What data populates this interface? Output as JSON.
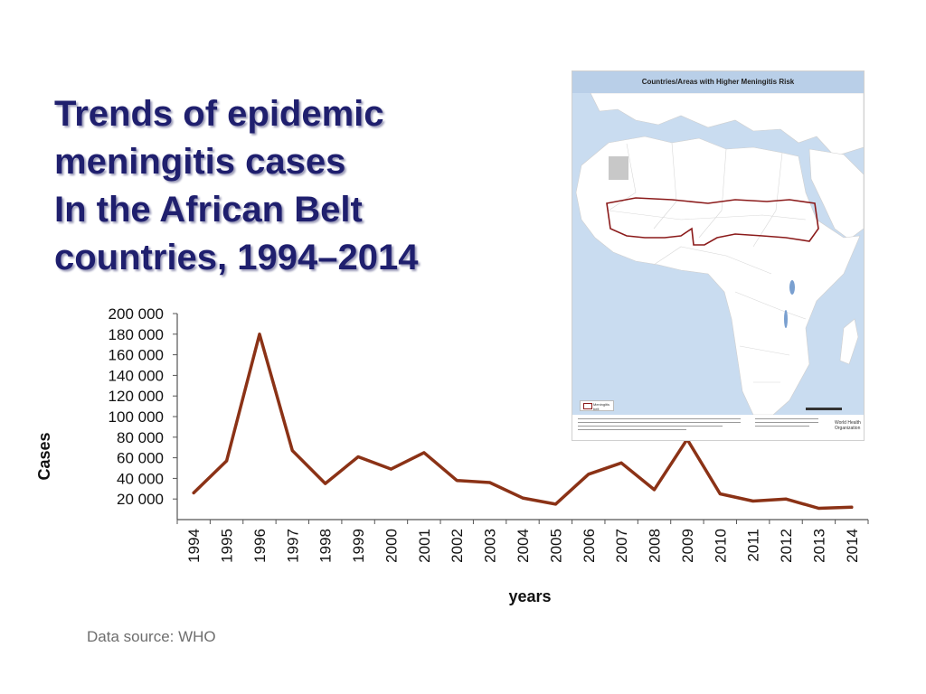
{
  "slide": {
    "title_lines": [
      "Trends of epidemic",
      "meningitis cases",
      "In the African Belt",
      "countries, 1994–2014"
    ],
    "source_note": "Data source: WHO"
  },
  "map": {
    "header": "Countries/Areas with Higher Meningitis Risk",
    "legend_label": "Meningitis belt",
    "logo_text": "World Health Organization",
    "colors": {
      "header_bg": "#b9cfe8",
      "water": "#c9dcf0",
      "land": "#ffffff",
      "belt_outline": "#8b1a1a"
    }
  },
  "chart_data": {
    "type": "line",
    "title": "",
    "xlabel": "years",
    "ylabel": "Cases",
    "x": [
      "1994",
      "1995",
      "1996",
      "1997",
      "1998",
      "1999",
      "2000",
      "2001",
      "2002",
      "2003",
      "2004",
      "2005",
      "2006",
      "2007",
      "2008",
      "2009",
      "2010",
      "2011",
      "2012",
      "2013",
      "2014"
    ],
    "series": [
      {
        "values": [
          26000,
          57000,
          180000,
          67000,
          35000,
          61000,
          49000,
          65000,
          38000,
          36000,
          21000,
          15000,
          44000,
          55000,
          29000,
          78000,
          25000,
          18000,
          20000,
          11000,
          12000
        ],
        "color": "#8b3216"
      }
    ],
    "ylim": [
      0,
      200000
    ],
    "yticks": [
      20000,
      40000,
      60000,
      80000,
      100000,
      120000,
      140000,
      160000,
      180000,
      200000
    ],
    "ytick_labels": [
      "20 000",
      "40 000",
      "60 000",
      "80 000",
      "100 000",
      "120 000",
      "140 000",
      "160 000",
      "180 000",
      "200 000"
    ],
    "grid": false,
    "x_tick_rotation": "vertical"
  }
}
